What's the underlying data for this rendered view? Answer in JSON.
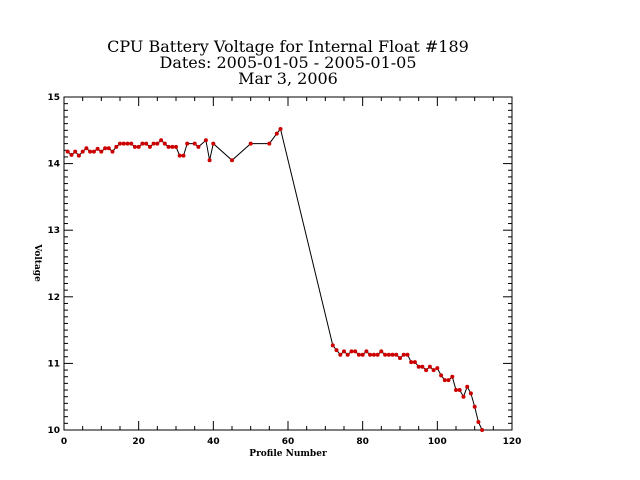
{
  "chart_data": {
    "type": "line",
    "title": "CPU Battery Voltage for Internal Float #189",
    "subtitle": "Dates:  2005-01-05 -  2005-01-05",
    "date_line": "Mar  3, 2006",
    "xlabel": "Profile Number",
    "ylabel": "Voltage",
    "xlim": [
      0,
      120
    ],
    "ylim": [
      10,
      15
    ],
    "x_ticks": [
      0,
      20,
      40,
      60,
      80,
      100,
      120
    ],
    "y_ticks": [
      10,
      11,
      12,
      13,
      14,
      15
    ],
    "x_tick_labels": [
      "0",
      "20",
      "40",
      "60",
      "80",
      "100",
      "120"
    ],
    "y_tick_labels": [
      "10",
      "11",
      "12",
      "13",
      "14",
      "15"
    ],
    "grid": false,
    "colors": {
      "line": "#000000",
      "marker": "#cc0000",
      "frame": "#000000"
    },
    "series": [
      {
        "x": [
          1,
          2,
          3,
          4,
          5,
          6,
          7,
          8,
          9,
          10,
          11,
          12,
          13,
          14,
          15,
          16,
          17,
          18,
          19,
          20,
          21,
          22,
          23,
          24,
          25,
          26,
          27,
          28,
          29,
          30,
          31,
          32,
          33,
          35,
          36,
          38,
          39,
          40,
          45,
          50,
          55,
          57,
          58,
          72,
          73,
          74,
          75,
          76,
          77,
          78,
          79,
          80,
          81,
          82,
          83,
          84,
          85,
          86,
          87,
          88,
          89,
          90,
          91,
          92,
          93,
          94,
          95,
          96,
          97,
          98,
          99,
          100,
          101,
          102,
          103,
          104,
          105,
          106,
          107,
          108,
          109,
          110,
          111,
          112
        ],
        "values": [
          14.18,
          14.13,
          14.18,
          14.12,
          14.18,
          14.23,
          14.18,
          14.18,
          14.22,
          14.18,
          14.23,
          14.23,
          14.18,
          14.25,
          14.3,
          14.3,
          14.3,
          14.3,
          14.25,
          14.25,
          14.3,
          14.3,
          14.25,
          14.3,
          14.3,
          14.35,
          14.3,
          14.25,
          14.25,
          14.25,
          14.12,
          14.12,
          14.3,
          14.3,
          14.25,
          14.35,
          14.05,
          14.3,
          14.05,
          14.3,
          14.3,
          14.45,
          14.52,
          11.27,
          11.2,
          11.13,
          11.18,
          11.13,
          11.18,
          11.18,
          11.13,
          11.13,
          11.18,
          11.13,
          11.13,
          11.13,
          11.18,
          11.13,
          11.13,
          11.13,
          11.13,
          11.08,
          11.13,
          11.13,
          11.02,
          11.02,
          10.95,
          10.95,
          10.9,
          10.95,
          10.9,
          10.93,
          10.82,
          10.75,
          10.75,
          10.8,
          10.6,
          10.6,
          10.5,
          10.65,
          10.55,
          10.35,
          10.12,
          10.0
        ]
      }
    ]
  }
}
